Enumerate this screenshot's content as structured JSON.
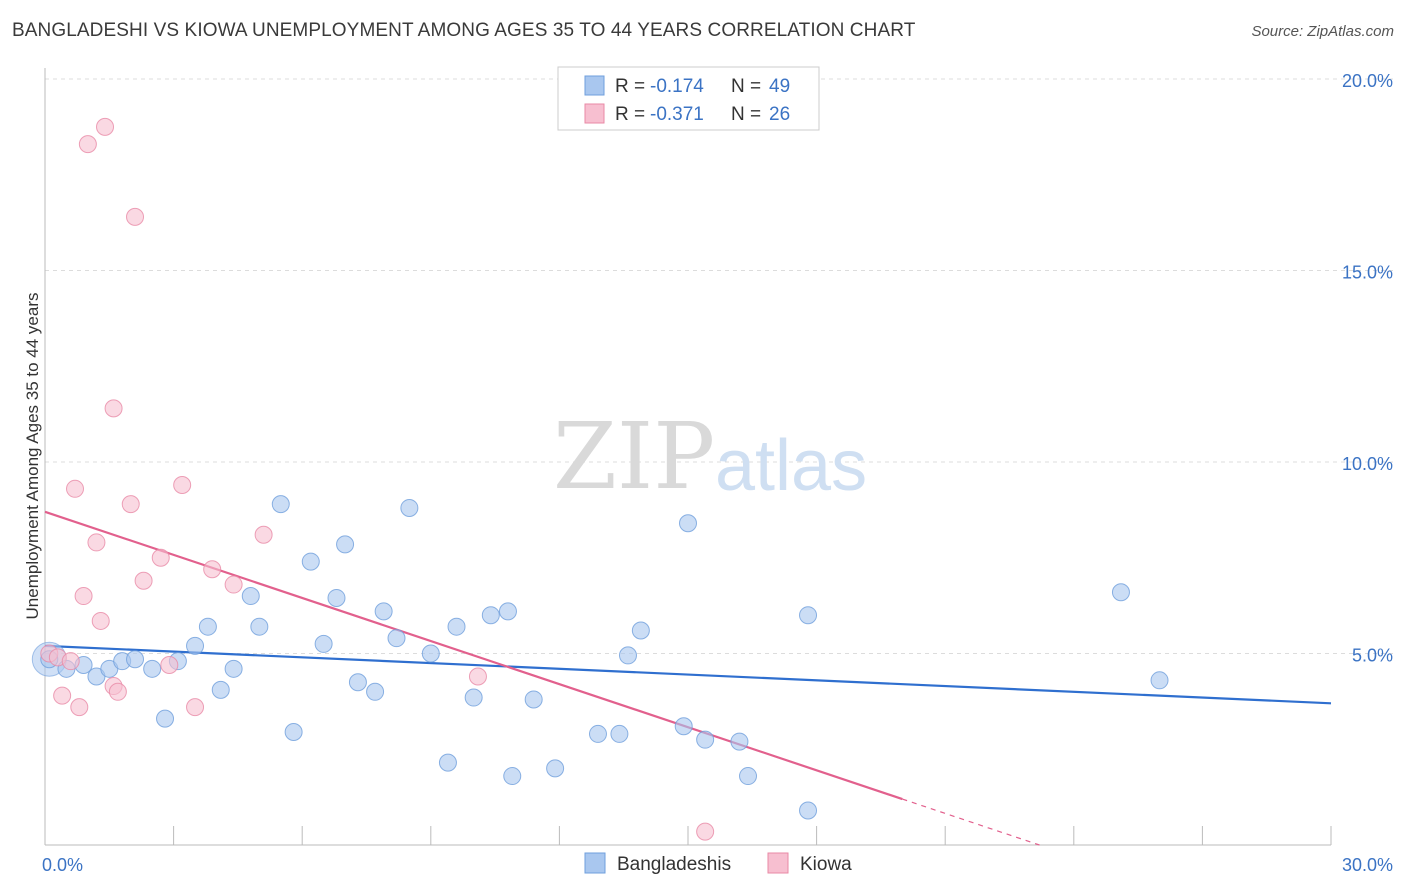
{
  "title": "BANGLADESHI VS KIOWA UNEMPLOYMENT AMONG AGES 35 TO 44 YEARS CORRELATION CHART",
  "source": "Source: ZipAtlas.com",
  "watermark": {
    "zip": "ZIP",
    "atlas": "atlas"
  },
  "chart_data": {
    "type": "scatter",
    "ylabel": "Unemployment Among Ages 35 to 44 years",
    "xlim": [
      0,
      30
    ],
    "ylim": [
      0,
      20
    ],
    "x_tick_labels": [
      {
        "value": 0,
        "label": "0.0%"
      },
      {
        "value": 30,
        "label": "30.0%"
      }
    ],
    "y_tick_labels": [
      {
        "value": 5,
        "label": "5.0%"
      },
      {
        "value": 10,
        "label": "10.0%"
      },
      {
        "value": 15,
        "label": "15.0%"
      },
      {
        "value": 20,
        "label": "20.0%"
      }
    ],
    "x_minor_ticks": [
      0,
      3,
      6,
      9,
      12,
      15,
      18,
      21,
      24,
      27,
      30
    ],
    "grid": true,
    "legend_position": "top-center",
    "series": [
      {
        "name": "Bangladeshis",
        "color": "#a9c7ef",
        "stroke": "#6f9fdc",
        "line_color": "#2f6fcf",
        "r_label": "R =",
        "r_value": "-0.174",
        "n_label": "N =",
        "n_value": "49",
        "trend": {
          "x0": 0,
          "y0": 5.2,
          "x1": 30,
          "y1": 3.7
        },
        "points": [
          [
            0.1,
            4.85
          ],
          [
            0.5,
            4.6
          ],
          [
            0.9,
            4.7
          ],
          [
            1.2,
            4.4
          ],
          [
            1.5,
            4.6
          ],
          [
            1.8,
            4.8
          ],
          [
            2.1,
            4.85
          ],
          [
            2.5,
            4.6
          ],
          [
            2.8,
            3.3
          ],
          [
            3.1,
            4.8
          ],
          [
            3.5,
            5.2
          ],
          [
            3.8,
            5.7
          ],
          [
            4.1,
            4.05
          ],
          [
            4.4,
            4.6
          ],
          [
            4.8,
            6.5
          ],
          [
            5.0,
            5.7
          ],
          [
            5.5,
            8.9
          ],
          [
            5.8,
            2.95
          ],
          [
            6.2,
            7.4
          ],
          [
            6.5,
            5.25
          ],
          [
            6.8,
            6.45
          ],
          [
            7.0,
            7.85
          ],
          [
            7.3,
            4.25
          ],
          [
            7.7,
            4.0
          ],
          [
            7.9,
            6.1
          ],
          [
            8.2,
            5.4
          ],
          [
            8.5,
            8.8
          ],
          [
            9.0,
            5.0
          ],
          [
            9.4,
            2.15
          ],
          [
            9.6,
            5.7
          ],
          [
            10.0,
            3.85
          ],
          [
            10.4,
            6.0
          ],
          [
            10.8,
            6.1
          ],
          [
            10.9,
            1.8
          ],
          [
            11.4,
            3.8
          ],
          [
            11.9,
            2.0
          ],
          [
            12.9,
            2.9
          ],
          [
            13.4,
            2.9
          ],
          [
            13.6,
            4.95
          ],
          [
            13.9,
            5.6
          ],
          [
            14.9,
            3.1
          ],
          [
            15.0,
            8.4
          ],
          [
            15.4,
            2.75
          ],
          [
            16.2,
            2.7
          ],
          [
            16.4,
            1.8
          ],
          [
            17.8,
            6.0
          ],
          [
            17.8,
            0.9
          ],
          [
            25.1,
            6.6
          ],
          [
            26.0,
            4.3
          ]
        ]
      },
      {
        "name": "Kiowa",
        "color": "#f7bfd0",
        "stroke": "#e98aa6",
        "line_color": "#e2608d",
        "r_label": "R =",
        "r_value": "-0.371",
        "n_label": "N =",
        "n_value": "26",
        "trend": {
          "x0": 0,
          "y0": 8.7,
          "x1": 20.0,
          "y1": 1.2
        },
        "trend_dashed_to": {
          "x": 23.2,
          "y": 0.0
        },
        "points": [
          [
            0.1,
            5.0
          ],
          [
            0.3,
            4.9
          ],
          [
            0.4,
            3.9
          ],
          [
            0.6,
            4.8
          ],
          [
            0.7,
            9.3
          ],
          [
            0.8,
            3.6
          ],
          [
            0.9,
            6.5
          ],
          [
            1.0,
            18.3
          ],
          [
            1.2,
            7.9
          ],
          [
            1.3,
            5.85
          ],
          [
            1.4,
            18.75
          ],
          [
            1.6,
            4.15
          ],
          [
            1.6,
            11.4
          ],
          [
            1.7,
            4.0
          ],
          [
            2.0,
            8.9
          ],
          [
            2.1,
            16.4
          ],
          [
            2.3,
            6.9
          ],
          [
            2.7,
            7.5
          ],
          [
            2.9,
            4.7
          ],
          [
            3.2,
            9.4
          ],
          [
            3.5,
            3.6
          ],
          [
            3.9,
            7.2
          ],
          [
            4.4,
            6.8
          ],
          [
            5.1,
            8.1
          ],
          [
            10.1,
            4.4
          ],
          [
            15.4,
            0.35
          ]
        ]
      }
    ]
  }
}
